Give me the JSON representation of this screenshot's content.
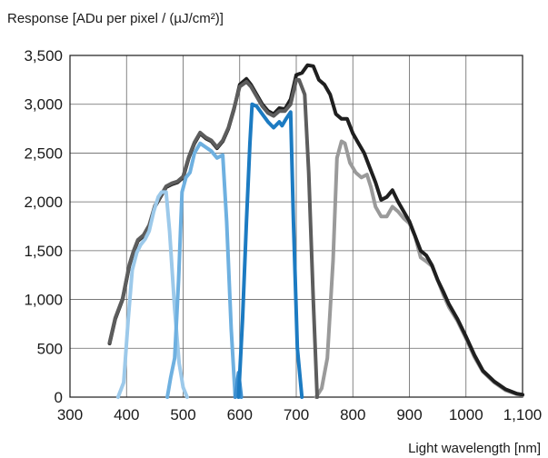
{
  "chart_data": {
    "type": "line",
    "ylabel": "Response [ADu per pixel / (µJ/cm²)]",
    "xlabel": "Light wavelength [nm]",
    "xlim": [
      300,
      1100
    ],
    "ylim": [
      0,
      3500
    ],
    "grid": true,
    "x_ticks": [
      300,
      400,
      500,
      600,
      700,
      800,
      900,
      1000,
      1100
    ],
    "x_tick_labels": [
      "300",
      "400",
      "500",
      "600",
      "700",
      "800",
      "900",
      "1000",
      "1,100"
    ],
    "y_ticks": [
      0,
      500,
      1000,
      1500,
      2000,
      2500,
      3000,
      3500
    ],
    "y_tick_labels": [
      "0",
      "500",
      "1,000",
      "1,500",
      "2,000",
      "2,500",
      "3,000",
      "3,500"
    ],
    "series": [
      {
        "color": "#9a9a9a",
        "width": 4,
        "points": [
          [
            735,
            0
          ],
          [
            745,
            90
          ],
          [
            755,
            400
          ],
          [
            765,
            1400
          ],
          [
            772,
            2450
          ],
          [
            780,
            2620
          ],
          [
            786,
            2600
          ],
          [
            795,
            2400
          ],
          [
            805,
            2300
          ],
          [
            815,
            2250
          ],
          [
            825,
            2280
          ],
          [
            832,
            2150
          ],
          [
            840,
            1950
          ],
          [
            850,
            1850
          ],
          [
            860,
            1850
          ],
          [
            870,
            1950
          ],
          [
            880,
            1900
          ],
          [
            890,
            1830
          ],
          [
            900,
            1780
          ],
          [
            910,
            1650
          ],
          [
            920,
            1430
          ],
          [
            930,
            1390
          ],
          [
            940,
            1340
          ],
          [
            950,
            1200
          ],
          [
            960,
            1050
          ],
          [
            970,
            920
          ],
          [
            985,
            780
          ],
          [
            1000,
            600
          ],
          [
            1015,
            410
          ],
          [
            1030,
            260
          ],
          [
            1050,
            150
          ],
          [
            1070,
            70
          ],
          [
            1090,
            30
          ],
          [
            1100,
            20
          ]
        ]
      },
      {
        "color": "#1f1f1f",
        "width": 4,
        "points": [
          [
            370,
            550
          ],
          [
            380,
            800
          ],
          [
            393,
            1000
          ],
          [
            405,
            1350
          ],
          [
            412,
            1480
          ],
          [
            420,
            1600
          ],
          [
            430,
            1650
          ],
          [
            440,
            1750
          ],
          [
            450,
            1950
          ],
          [
            460,
            2050
          ],
          [
            470,
            2150
          ],
          [
            480,
            2180
          ],
          [
            490,
            2200
          ],
          [
            500,
            2250
          ],
          [
            510,
            2450
          ],
          [
            520,
            2600
          ],
          [
            530,
            2700
          ],
          [
            540,
            2650
          ],
          [
            550,
            2620
          ],
          [
            560,
            2550
          ],
          [
            570,
            2620
          ],
          [
            580,
            2750
          ],
          [
            590,
            2950
          ],
          [
            600,
            3200
          ],
          [
            612,
            3260
          ],
          [
            620,
            3200
          ],
          [
            630,
            3100
          ],
          [
            640,
            3000
          ],
          [
            650,
            2930
          ],
          [
            660,
            2900
          ],
          [
            670,
            2960
          ],
          [
            680,
            2950
          ],
          [
            690,
            3050
          ],
          [
            700,
            3300
          ],
          [
            710,
            3320
          ],
          [
            720,
            3400
          ],
          [
            730,
            3390
          ],
          [
            740,
            3250
          ],
          [
            750,
            3200
          ],
          [
            760,
            3100
          ],
          [
            770,
            2900
          ],
          [
            780,
            2850
          ],
          [
            790,
            2850
          ],
          [
            800,
            2700
          ],
          [
            810,
            2600
          ],
          [
            820,
            2500
          ],
          [
            830,
            2350
          ],
          [
            840,
            2200
          ],
          [
            850,
            2020
          ],
          [
            860,
            2050
          ],
          [
            870,
            2120
          ],
          [
            880,
            2000
          ],
          [
            890,
            1900
          ],
          [
            900,
            1800
          ],
          [
            910,
            1650
          ],
          [
            920,
            1500
          ],
          [
            930,
            1450
          ],
          [
            940,
            1350
          ],
          [
            950,
            1200
          ],
          [
            960,
            1080
          ],
          [
            970,
            950
          ],
          [
            985,
            800
          ],
          [
            1000,
            620
          ],
          [
            1015,
            430
          ],
          [
            1030,
            270
          ],
          [
            1050,
            160
          ],
          [
            1070,
            80
          ],
          [
            1090,
            35
          ],
          [
            1100,
            25
          ]
        ]
      },
      {
        "color": "#5d5d5d",
        "width": 4,
        "points": [
          [
            370,
            560
          ],
          [
            380,
            810
          ],
          [
            393,
            1010
          ],
          [
            405,
            1360
          ],
          [
            412,
            1490
          ],
          [
            420,
            1610
          ],
          [
            430,
            1660
          ],
          [
            440,
            1760
          ],
          [
            450,
            1960
          ],
          [
            460,
            2060
          ],
          [
            470,
            2160
          ],
          [
            480,
            2190
          ],
          [
            490,
            2210
          ],
          [
            500,
            2260
          ],
          [
            510,
            2460
          ],
          [
            520,
            2610
          ],
          [
            530,
            2710
          ],
          [
            540,
            2660
          ],
          [
            550,
            2630
          ],
          [
            560,
            2560
          ],
          [
            570,
            2630
          ],
          [
            580,
            2760
          ],
          [
            590,
            2960
          ],
          [
            600,
            3180
          ],
          [
            612,
            3230
          ],
          [
            620,
            3180
          ],
          [
            630,
            3080
          ],
          [
            640,
            2980
          ],
          [
            650,
            2910
          ],
          [
            660,
            2880
          ],
          [
            670,
            2930
          ],
          [
            680,
            2930
          ],
          [
            690,
            3000
          ],
          [
            700,
            3250
          ],
          [
            705,
            3250
          ],
          [
            715,
            3100
          ],
          [
            722,
            2300
          ],
          [
            730,
            1000
          ],
          [
            737,
            0
          ]
        ]
      },
      {
        "color": "#9cc9ea",
        "width": 4,
        "points": [
          [
            385,
            0
          ],
          [
            395,
            150
          ],
          [
            403,
            800
          ],
          [
            410,
            1300
          ],
          [
            418,
            1480
          ],
          [
            425,
            1560
          ],
          [
            433,
            1620
          ],
          [
            440,
            1700
          ],
          [
            448,
            1900
          ],
          [
            456,
            2050
          ],
          [
            462,
            2100
          ],
          [
            470,
            2100
          ],
          [
            476,
            1700
          ],
          [
            485,
            900
          ],
          [
            493,
            350
          ],
          [
            500,
            100
          ],
          [
            507,
            0
          ]
        ]
      },
      {
        "color": "#6eb0e0",
        "width": 4,
        "points": [
          [
            472,
            0
          ],
          [
            478,
            200
          ],
          [
            485,
            400
          ],
          [
            492,
            1200
          ],
          [
            498,
            2100
          ],
          [
            505,
            2250
          ],
          [
            512,
            2300
          ],
          [
            520,
            2500
          ],
          [
            530,
            2600
          ],
          [
            540,
            2560
          ],
          [
            550,
            2520
          ],
          [
            560,
            2450
          ],
          [
            570,
            2480
          ],
          [
            577,
            1800
          ],
          [
            585,
            700
          ],
          [
            592,
            0
          ]
        ]
      },
      {
        "color": "#3d8fd0",
        "width": 4,
        "points": [
          [
            592,
            0
          ],
          [
            598,
            250
          ],
          [
            603,
            0
          ]
        ]
      },
      {
        "color": "#1c7bc2",
        "width": 4,
        "points": [
          [
            598,
            0
          ],
          [
            605,
            800
          ],
          [
            612,
            1800
          ],
          [
            618,
            2600
          ],
          [
            622,
            3000
          ],
          [
            630,
            2980
          ],
          [
            640,
            2900
          ],
          [
            650,
            2820
          ],
          [
            660,
            2760
          ],
          [
            670,
            2820
          ],
          [
            675,
            2780
          ],
          [
            682,
            2850
          ],
          [
            690,
            2920
          ],
          [
            695,
            1800
          ],
          [
            702,
            500
          ],
          [
            710,
            0
          ]
        ]
      }
    ]
  }
}
